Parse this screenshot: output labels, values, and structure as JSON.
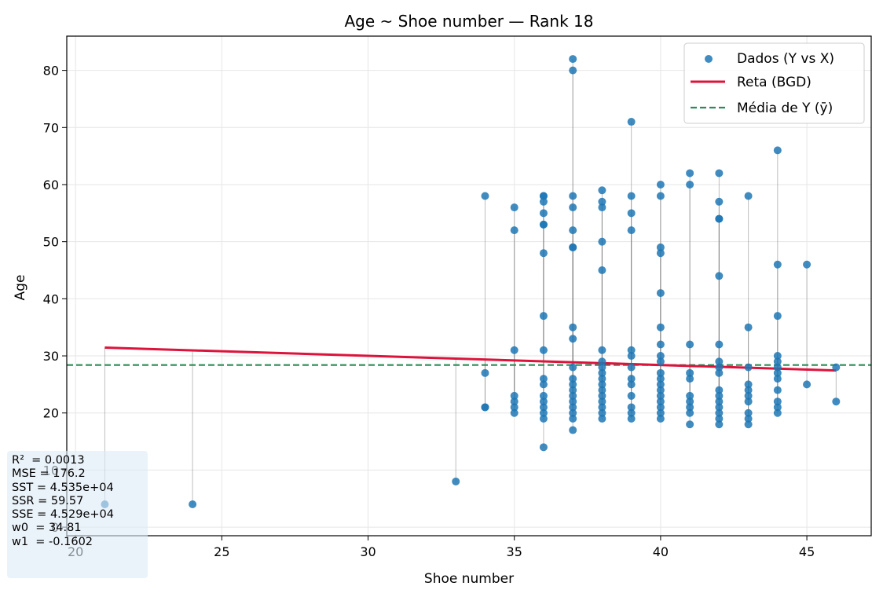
{
  "chart_data": {
    "type": "scatter",
    "title": "Age ~ Shoe number — Rank 18",
    "xlabel": "Shoe number",
    "ylabel": "Age",
    "xlim": [
      19.7,
      47.2
    ],
    "ylim": [
      -1.5,
      86
    ],
    "xticks": [
      20,
      25,
      30,
      35,
      40,
      45
    ],
    "yticks": [
      0,
      10,
      20,
      30,
      40,
      50,
      60,
      70,
      80
    ],
    "grid": true,
    "legend_position": "top-right",
    "legend": [
      {
        "label": "Dados (Y vs X)",
        "kind": "scatter",
        "color": "#1f77b4"
      },
      {
        "label": "Reta (BGD)",
        "kind": "line",
        "color": "#dc143c"
      },
      {
        "label": "Média de Y (ȳ)",
        "kind": "dashed",
        "color": "#2e8b57"
      }
    ],
    "regression": {
      "w0": 34.81,
      "w1": -0.1602,
      "x_range": [
        21,
        46
      ]
    },
    "mean_y": 28.4,
    "stats": [
      "R²  = 0.0013",
      "MSE = 176.2",
      "SST = 4.535e+04",
      "SSR = 59.57",
      "SSE = 4.529e+04",
      "w0  = 34.81",
      "w1  = -0.1602"
    ],
    "points": [
      [
        21,
        4
      ],
      [
        24,
        4
      ],
      [
        33,
        8
      ],
      [
        34,
        58
      ],
      [
        34,
        27
      ],
      [
        34,
        21
      ],
      [
        34,
        21
      ],
      [
        35,
        56
      ],
      [
        35,
        52
      ],
      [
        35,
        31
      ],
      [
        35,
        23
      ],
      [
        35,
        22
      ],
      [
        35,
        21
      ],
      [
        35,
        20
      ],
      [
        36,
        58
      ],
      [
        36,
        58
      ],
      [
        36,
        57
      ],
      [
        36,
        55
      ],
      [
        36,
        53
      ],
      [
        36,
        53
      ],
      [
        36,
        48
      ],
      [
        36,
        37
      ],
      [
        36,
        31
      ],
      [
        36,
        26
      ],
      [
        36,
        25
      ],
      [
        36,
        23
      ],
      [
        36,
        22
      ],
      [
        36,
        21
      ],
      [
        36,
        20
      ],
      [
        36,
        19
      ],
      [
        36,
        14
      ],
      [
        37,
        82
      ],
      [
        37,
        80
      ],
      [
        37,
        58
      ],
      [
        37,
        56
      ],
      [
        37,
        52
      ],
      [
        37,
        49
      ],
      [
        37,
        49
      ],
      [
        37,
        35
      ],
      [
        37,
        33
      ],
      [
        37,
        28
      ],
      [
        37,
        26
      ],
      [
        37,
        25
      ],
      [
        37,
        24
      ],
      [
        37,
        23
      ],
      [
        37,
        22
      ],
      [
        37,
        21
      ],
      [
        37,
        20
      ],
      [
        37,
        19
      ],
      [
        37,
        17
      ],
      [
        38,
        59
      ],
      [
        38,
        57
      ],
      [
        38,
        56
      ],
      [
        38,
        50
      ],
      [
        38,
        45
      ],
      [
        38,
        31
      ],
      [
        38,
        29
      ],
      [
        38,
        28
      ],
      [
        38,
        27
      ],
      [
        38,
        26
      ],
      [
        38,
        25
      ],
      [
        38,
        24
      ],
      [
        38,
        23
      ],
      [
        38,
        22
      ],
      [
        38,
        21
      ],
      [
        38,
        20
      ],
      [
        38,
        19
      ],
      [
        39,
        71
      ],
      [
        39,
        58
      ],
      [
        39,
        55
      ],
      [
        39,
        52
      ],
      [
        39,
        31
      ],
      [
        39,
        30
      ],
      [
        39,
        28
      ],
      [
        39,
        26
      ],
      [
        39,
        25
      ],
      [
        39,
        23
      ],
      [
        39,
        21
      ],
      [
        39,
        20
      ],
      [
        39,
        19
      ],
      [
        40,
        60
      ],
      [
        40,
        58
      ],
      [
        40,
        49
      ],
      [
        40,
        48
      ],
      [
        40,
        41
      ],
      [
        40,
        35
      ],
      [
        40,
        32
      ],
      [
        40,
        30
      ],
      [
        40,
        29
      ],
      [
        40,
        27
      ],
      [
        40,
        26
      ],
      [
        40,
        25
      ],
      [
        40,
        24
      ],
      [
        40,
        23
      ],
      [
        40,
        22
      ],
      [
        40,
        21
      ],
      [
        40,
        20
      ],
      [
        40,
        19
      ],
      [
        41,
        62
      ],
      [
        41,
        60
      ],
      [
        41,
        32
      ],
      [
        41,
        27
      ],
      [
        41,
        26
      ],
      [
        41,
        23
      ],
      [
        41,
        22
      ],
      [
        41,
        21
      ],
      [
        41,
        20
      ],
      [
        41,
        18
      ],
      [
        42,
        62
      ],
      [
        42,
        57
      ],
      [
        42,
        54
      ],
      [
        42,
        54
      ],
      [
        42,
        44
      ],
      [
        42,
        32
      ],
      [
        42,
        29
      ],
      [
        42,
        28
      ],
      [
        42,
        27
      ],
      [
        42,
        24
      ],
      [
        42,
        23
      ],
      [
        42,
        22
      ],
      [
        42,
        21
      ],
      [
        42,
        20
      ],
      [
        42,
        19
      ],
      [
        42,
        18
      ],
      [
        43,
        58
      ],
      [
        43,
        35
      ],
      [
        43,
        28
      ],
      [
        43,
        25
      ],
      [
        43,
        24
      ],
      [
        43,
        23
      ],
      [
        43,
        22
      ],
      [
        43,
        20
      ],
      [
        43,
        19
      ],
      [
        43,
        18
      ],
      [
        44,
        66
      ],
      [
        44,
        46
      ],
      [
        44,
        37
      ],
      [
        44,
        30
      ],
      [
        44,
        29
      ],
      [
        44,
        28
      ],
      [
        44,
        27
      ],
      [
        44,
        26
      ],
      [
        44,
        24
      ],
      [
        44,
        22
      ],
      [
        44,
        21
      ],
      [
        44,
        20
      ],
      [
        45,
        46
      ],
      [
        45,
        25
      ],
      [
        46,
        28
      ],
      [
        46,
        22
      ]
    ]
  }
}
